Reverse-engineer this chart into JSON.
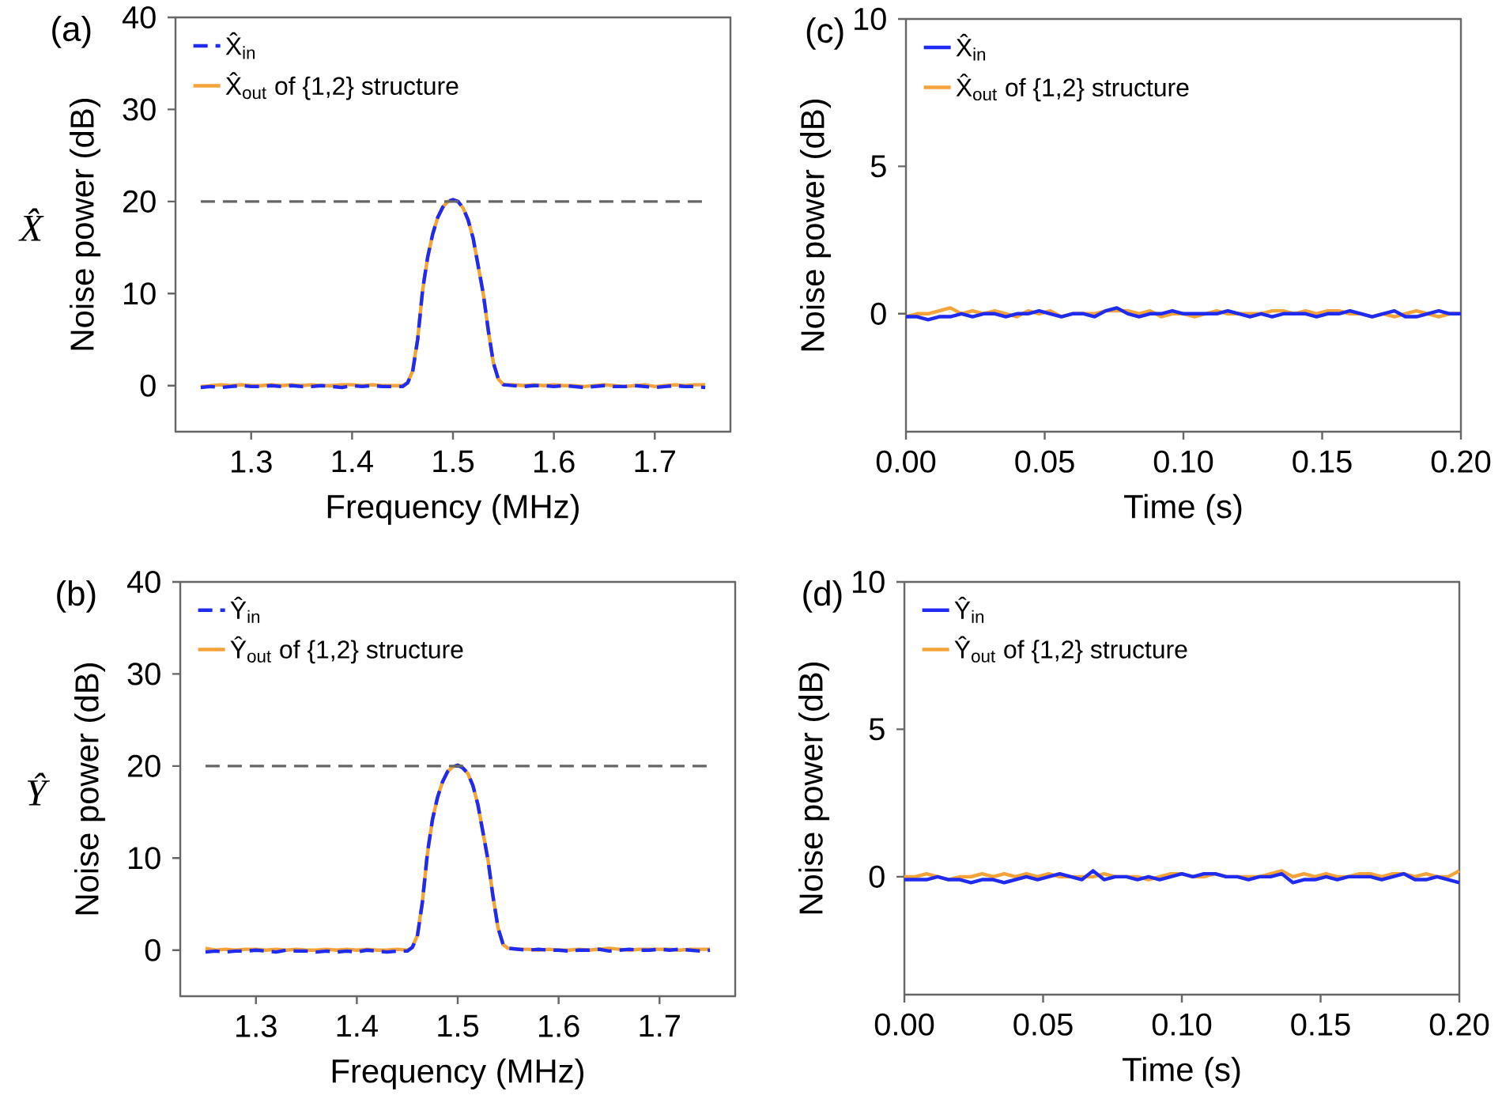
{
  "chart_data": [
    {
      "type": "line",
      "xlabel": "Frequency (MHz)",
      "ylabel": "Noise power (dB)",
      "annotations": [
        "(a)",
        "X̂"
      ],
      "legend": "top left",
      "xlim": [
        1.225,
        1.775
      ],
      "xticks": [
        1.3,
        1.4,
        1.5,
        1.6,
        1.7
      ],
      "ylim": [
        -5,
        40
      ],
      "yticks": [
        0,
        10,
        20,
        30,
        40
      ],
      "ref_lines": [
        {
          "axis": "y",
          "value": 20,
          "color": "#666666",
          "line_style": "dashed"
        }
      ],
      "x": [
        1.25,
        1.26,
        1.27,
        1.28,
        1.29,
        1.3,
        1.31,
        1.32,
        1.33,
        1.34,
        1.35,
        1.36,
        1.37,
        1.38,
        1.39,
        1.4,
        1.41,
        1.42,
        1.43,
        1.44,
        1.45,
        1.455,
        1.46,
        1.465,
        1.47,
        1.475,
        1.48,
        1.485,
        1.49,
        1.495,
        1.5,
        1.505,
        1.51,
        1.515,
        1.52,
        1.525,
        1.53,
        1.535,
        1.54,
        1.545,
        1.55,
        1.56,
        1.57,
        1.58,
        1.59,
        1.6,
        1.61,
        1.62,
        1.63,
        1.64,
        1.65,
        1.66,
        1.67,
        1.68,
        1.69,
        1.7,
        1.71,
        1.72,
        1.73,
        1.74,
        1.75
      ],
      "series": [
        {
          "name": "X̂$_{in}$",
          "color": "#1f2bf0",
          "line_style": "dashed",
          "values": [
            -0.2,
            -0.1,
            -0.2,
            -0.1,
            0,
            -0.1,
            -0.1,
            0,
            -0.1,
            0,
            -0.1,
            -0.1,
            0,
            -0.1,
            -0.2,
            0,
            -0.1,
            0,
            -0.1,
            -0.1,
            -0.1,
            0.3,
            1.5,
            5,
            10.5,
            14,
            16.5,
            18.3,
            19.4,
            20,
            20.2,
            20,
            19.3,
            18,
            16,
            13,
            10,
            6,
            2.5,
            0.7,
            0.1,
            0,
            -0.1,
            0,
            0,
            -0.1,
            0,
            -0.1,
            -0.2,
            -0.1,
            0,
            -0.1,
            -0.1,
            0,
            -0.1,
            -0.2,
            -0.1,
            0,
            -0.1,
            -0.1,
            -0.2
          ]
        },
        {
          "name": "X̂$_{out}$ of {1,2} structure",
          "color": "#f5a238",
          "line_style": "solid",
          "values": [
            -0.1,
            0,
            0.1,
            0,
            0.1,
            0,
            0,
            0.1,
            0,
            0.1,
            0,
            0.1,
            0,
            0,
            0.1,
            0.1,
            0,
            0.1,
            0,
            0,
            0,
            0.3,
            1.6,
            5.1,
            10.4,
            14,
            16.5,
            18.3,
            19.4,
            20,
            20.2,
            20,
            19.3,
            18,
            16,
            13,
            10,
            6,
            2.5,
            0.7,
            0.1,
            0.1,
            0,
            0.1,
            0,
            0.1,
            0,
            0,
            -0.1,
            0,
            0.1,
            0,
            -0.1,
            0,
            0.1,
            -0.1,
            0,
            0.1,
            0,
            0.1,
            0.1
          ]
        }
      ]
    },
    {
      "type": "line",
      "xlabel": "Time (s)",
      "ylabel": "Noise power (dB)",
      "annotations": [
        "(c)"
      ],
      "legend": "top left",
      "xlim": [
        0,
        0.2
      ],
      "xticks": [
        {
          "value": 0,
          "label": "0.00"
        },
        {
          "value": 0.05,
          "label": "0.05"
        },
        {
          "value": 0.1,
          "label": "0.10"
        },
        {
          "value": 0.15,
          "label": "0.15"
        },
        {
          "value": 0.2,
          "label": "0.20"
        }
      ],
      "ylim": [
        -4,
        10
      ],
      "yticks": [
        0,
        5,
        10
      ],
      "x": [
        0,
        0.004,
        0.008,
        0.012,
        0.016,
        0.02,
        0.024,
        0.028,
        0.032,
        0.036,
        0.04,
        0.044,
        0.048,
        0.052,
        0.056,
        0.06,
        0.064,
        0.068,
        0.072,
        0.076,
        0.08,
        0.084,
        0.088,
        0.092,
        0.096,
        0.1,
        0.104,
        0.108,
        0.112,
        0.116,
        0.12,
        0.124,
        0.128,
        0.132,
        0.136,
        0.14,
        0.144,
        0.148,
        0.152,
        0.156,
        0.16,
        0.164,
        0.168,
        0.172,
        0.176,
        0.18,
        0.184,
        0.188,
        0.192,
        0.196,
        0.2
      ],
      "series": [
        {
          "name": "X̂$_{in}$",
          "color": "#1f2bf0",
          "line_style": "solid",
          "values": [
            -0.1,
            -0.1,
            -0.2,
            -0.1,
            -0.1,
            0,
            -0.1,
            0,
            0,
            -0.1,
            0,
            0,
            0.1,
            0,
            -0.1,
            0,
            0,
            -0.1,
            0.1,
            0.2,
            0,
            -0.1,
            0,
            0,
            0.1,
            0,
            0,
            0,
            0,
            0.1,
            0,
            -0.1,
            0,
            -0.1,
            0,
            0,
            0,
            -0.1,
            0,
            0,
            0.1,
            0,
            -0.1,
            0,
            0.1,
            -0.1,
            -0.1,
            0,
            0.1,
            0,
            0
          ]
        },
        {
          "name": "X̂$_{out}$ of {1,2} structure",
          "color": "#f5a238",
          "line_style": "solid",
          "values": [
            -0.1,
            0,
            0,
            0.1,
            0.2,
            0,
            0.1,
            0,
            0.1,
            0,
            -0.1,
            0.1,
            0,
            0.1,
            -0.1,
            0,
            0,
            0,
            0.1,
            0.1,
            0.1,
            0,
            0.1,
            -0.1,
            0,
            0,
            -0.1,
            0,
            0.1,
            0,
            0,
            0,
            0,
            0.1,
            0.1,
            0,
            0.1,
            0,
            0.1,
            0.1,
            0,
            0,
            -0.1,
            0,
            -0.1,
            0,
            0.1,
            0,
            -0.1,
            0,
            0
          ]
        }
      ]
    },
    {
      "type": "line",
      "xlabel": "Frequency (MHz)",
      "ylabel": "Noise power (dB)",
      "annotations": [
        "(b)",
        "Ŷ"
      ],
      "legend": "top left",
      "xlim": [
        1.225,
        1.775
      ],
      "xticks": [
        1.3,
        1.4,
        1.5,
        1.6,
        1.7
      ],
      "ylim": [
        -5,
        40
      ],
      "yticks": [
        0,
        10,
        20,
        30,
        40
      ],
      "ref_lines": [
        {
          "axis": "y",
          "value": 20,
          "color": "#666666",
          "line_style": "dashed"
        }
      ],
      "x": [
        1.25,
        1.26,
        1.27,
        1.28,
        1.29,
        1.3,
        1.31,
        1.32,
        1.33,
        1.34,
        1.35,
        1.36,
        1.37,
        1.38,
        1.39,
        1.4,
        1.41,
        1.42,
        1.43,
        1.44,
        1.45,
        1.455,
        1.46,
        1.465,
        1.47,
        1.475,
        1.48,
        1.485,
        1.49,
        1.495,
        1.5,
        1.505,
        1.51,
        1.515,
        1.52,
        1.525,
        1.53,
        1.535,
        1.54,
        1.545,
        1.55,
        1.56,
        1.57,
        1.58,
        1.59,
        1.6,
        1.61,
        1.62,
        1.63,
        1.64,
        1.65,
        1.66,
        1.67,
        1.68,
        1.69,
        1.7,
        1.71,
        1.72,
        1.73,
        1.74,
        1.75
      ],
      "series": [
        {
          "name": "Ŷ$_{in}$",
          "color": "#1f2bf0",
          "line_style": "dashed",
          "values": [
            -0.2,
            -0.1,
            -0.2,
            -0.1,
            -0.1,
            0,
            -0.1,
            -0.2,
            0,
            -0.1,
            -0.1,
            -0.2,
            -0.1,
            -0.2,
            -0.1,
            -0.2,
            0,
            -0.1,
            -0.2,
            -0.1,
            -0.1,
            0.3,
            1.5,
            5.2,
            10.6,
            14.2,
            16.6,
            18.3,
            19.4,
            19.9,
            20.1,
            19.8,
            19.2,
            17.9,
            15.8,
            12.8,
            9.8,
            5.8,
            2.4,
            0.6,
            0.2,
            0.1,
            0,
            0.1,
            0,
            0,
            -0.1,
            0,
            0,
            0.1,
            -0.1,
            0,
            0.1,
            0,
            0,
            0.1,
            0,
            0.1,
            0,
            -0.1,
            0
          ]
        },
        {
          "name": "Ŷ$_{out}$ of {1,2} structure",
          "color": "#f5a238",
          "line_style": "solid",
          "values": [
            0.2,
            0,
            0.1,
            0,
            0.1,
            0.1,
            0,
            0.1,
            0,
            0.1,
            0,
            0,
            0.1,
            0,
            0.1,
            0,
            0.1,
            0,
            0,
            0.1,
            0,
            0.3,
            1.6,
            5.3,
            10.5,
            14.2,
            16.6,
            18.3,
            19.4,
            19.9,
            20.1,
            19.8,
            19.2,
            17.9,
            15.8,
            12.8,
            9.8,
            5.8,
            2.4,
            0.6,
            0.2,
            0.1,
            0.1,
            0,
            0.1,
            0,
            0,
            0.1,
            0,
            0.1,
            0.2,
            0.1,
            0,
            0.1,
            0.1,
            0.1,
            0.1,
            0,
            0.1,
            0.1,
            0.1
          ]
        }
      ]
    },
    {
      "type": "line",
      "xlabel": "Time (s)",
      "ylabel": "Noise power (dB)",
      "annotations": [
        "(d)"
      ],
      "legend": "top left",
      "xlim": [
        0,
        0.2
      ],
      "xticks": [
        {
          "value": 0,
          "label": "0.00"
        },
        {
          "value": 0.05,
          "label": "0.05"
        },
        {
          "value": 0.1,
          "label": "0.10"
        },
        {
          "value": 0.15,
          "label": "0.15"
        },
        {
          "value": 0.2,
          "label": "0.20"
        }
      ],
      "ylim": [
        -4,
        10
      ],
      "yticks": [
        0,
        5,
        10
      ],
      "x": [
        0,
        0.004,
        0.008,
        0.012,
        0.016,
        0.02,
        0.024,
        0.028,
        0.032,
        0.036,
        0.04,
        0.044,
        0.048,
        0.052,
        0.056,
        0.06,
        0.064,
        0.068,
        0.072,
        0.076,
        0.08,
        0.084,
        0.088,
        0.092,
        0.096,
        0.1,
        0.104,
        0.108,
        0.112,
        0.116,
        0.12,
        0.124,
        0.128,
        0.132,
        0.136,
        0.14,
        0.144,
        0.148,
        0.152,
        0.156,
        0.16,
        0.164,
        0.168,
        0.172,
        0.176,
        0.18,
        0.184,
        0.188,
        0.192,
        0.196,
        0.2
      ],
      "series": [
        {
          "name": "Ŷ$_{in}$",
          "color": "#1f2bf0",
          "line_style": "solid",
          "values": [
            -0.1,
            -0.1,
            -0.1,
            0,
            -0.1,
            -0.1,
            -0.2,
            -0.1,
            -0.1,
            -0.2,
            -0.1,
            0,
            -0.1,
            0,
            0.1,
            0,
            -0.1,
            0.2,
            -0.1,
            0,
            0,
            -0.1,
            0,
            -0.1,
            0,
            0.1,
            0,
            0.1,
            0.1,
            0,
            0,
            -0.1,
            0,
            0,
            0.1,
            -0.2,
            -0.1,
            -0.1,
            0,
            -0.1,
            0,
            0,
            0,
            -0.1,
            0,
            0.1,
            -0.1,
            -0.1,
            0,
            -0.1,
            -0.2
          ]
        },
        {
          "name": "Ŷ$_{out}$ of {1,2} structure",
          "color": "#f5a238",
          "line_style": "solid",
          "values": [
            0,
            0,
            0.1,
            0,
            -0.1,
            0,
            0,
            0.1,
            0,
            0.1,
            0,
            0.1,
            0,
            0.1,
            0,
            0,
            0,
            0,
            0.1,
            0,
            0,
            0,
            -0.1,
            0,
            0.1,
            0.1,
            0,
            0,
            0.1,
            0,
            0,
            0,
            0,
            0.1,
            0.2,
            0,
            0.1,
            0,
            0.1,
            0,
            0,
            0.1,
            0.1,
            0,
            0.1,
            0.1,
            0,
            0.1,
            0,
            0,
            0.2
          ]
        }
      ]
    }
  ]
}
